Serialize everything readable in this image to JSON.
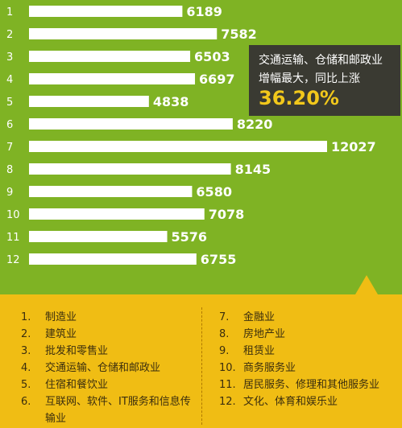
{
  "chart_data": {
    "type": "bar",
    "orientation": "horizontal",
    "categories": [
      "1",
      "2",
      "3",
      "4",
      "5",
      "6",
      "7",
      "8",
      "9",
      "10",
      "11",
      "12"
    ],
    "values": [
      6189,
      7582,
      6503,
      6697,
      4838,
      8220,
      12027,
      8145,
      6580,
      7078,
      5576,
      6755
    ],
    "value_labels": [
      "6189",
      "7582",
      "6503",
      "6697",
      "4838",
      "8220",
      "12027",
      "8145",
      "6580",
      "7078",
      "5576",
      "6755"
    ],
    "xlim": [
      0,
      12027
    ],
    "grid": false,
    "annotation": {
      "line1": "交通运输、仓储和邮政业",
      "line2": "增幅最大，同比上涨",
      "value": "36.20%"
    }
  },
  "legend": {
    "left": [
      {
        "num": "1.",
        "text": "制造业"
      },
      {
        "num": "2.",
        "text": "建筑业"
      },
      {
        "num": "3.",
        "text": "批发和零售业"
      },
      {
        "num": "4.",
        "text": "交通运输、仓储和邮政业"
      },
      {
        "num": "5.",
        "text": "住宿和餐饮业"
      },
      {
        "num": "6.",
        "text": "互联网、软件、IT服务和信息传输业"
      }
    ],
    "right": [
      {
        "num": "7.",
        "text": "金融业"
      },
      {
        "num": "8.",
        "text": "房地产业"
      },
      {
        "num": "9.",
        "text": "租赁业"
      },
      {
        "num": "10.",
        "text": "商务服务业"
      },
      {
        "num": "11.",
        "text": "居民服务、修理和其他服务业"
      },
      {
        "num": "12.",
        "text": "文化、体育和娱乐业"
      }
    ]
  },
  "colors": {
    "chart_background": "#7fb324",
    "bars": "#ffffff",
    "callout_background": "#3a3a32",
    "callout_highlight": "#f2c81b",
    "legend_background": "#f0bd14"
  }
}
